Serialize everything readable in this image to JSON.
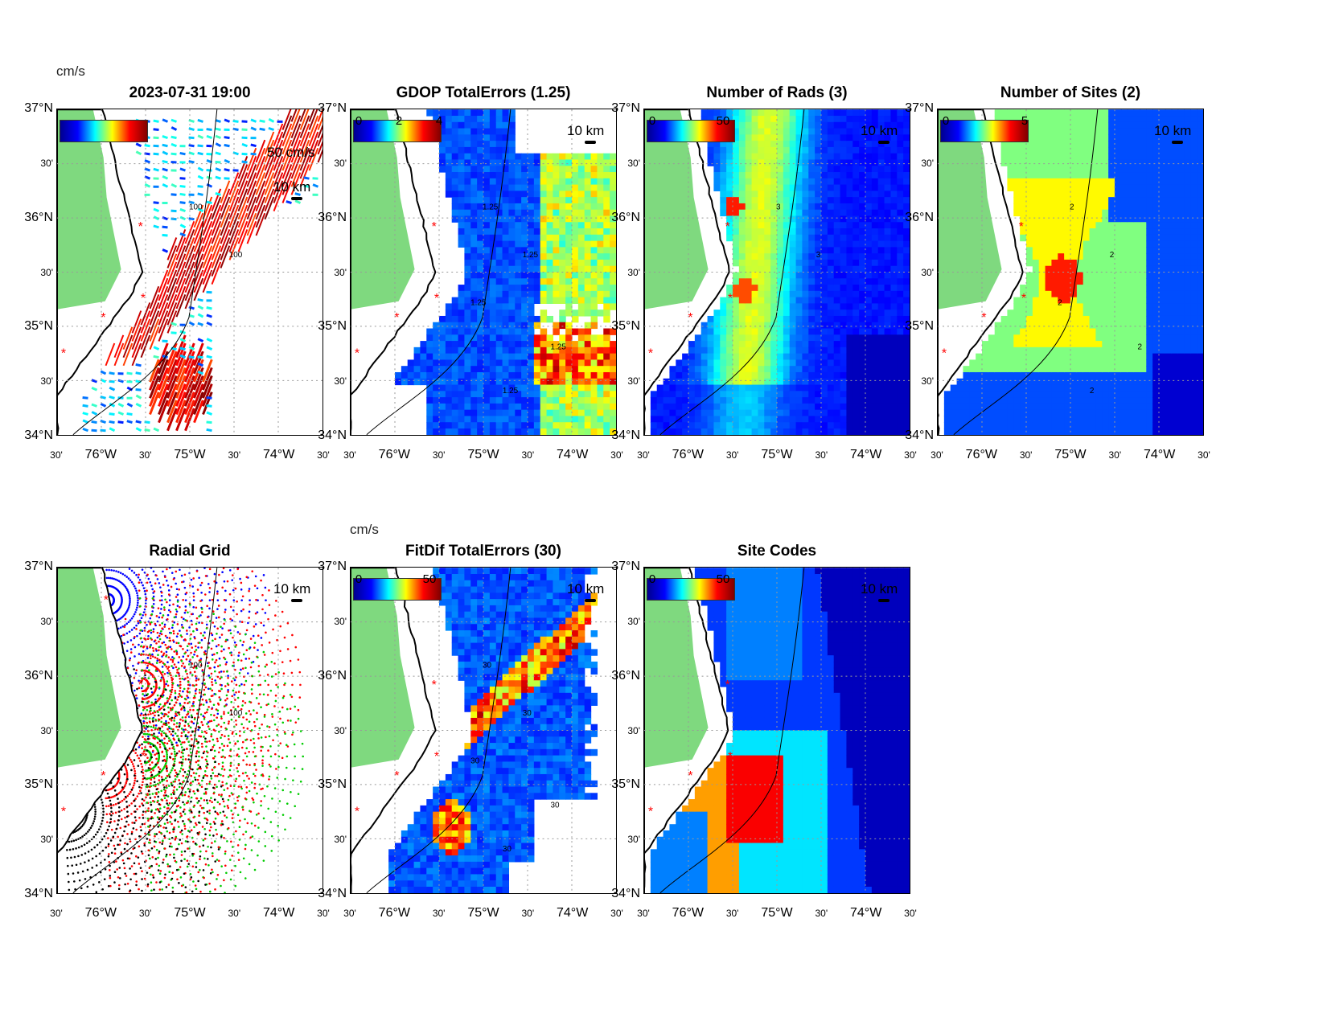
{
  "figure_title": "2023-07-31 19:00",
  "lat_ticks": [
    "37°N",
    "30'",
    "36°N",
    "30'",
    "35°N",
    "30'",
    "34°N"
  ],
  "lon_ticks": [
    "30'",
    "76°W",
    "30'",
    "75°W",
    "30'",
    "74°W",
    "30'"
  ],
  "colors": {
    "land": "#7fd97f",
    "coast": "#000000"
  },
  "chart_data": [
    {
      "id": "currents",
      "type": "quiver",
      "title": "2023-07-31 19:00",
      "colorbar_unit": "cm/s",
      "colorbar_ticks": [],
      "reference_vector": "50 cm/s",
      "scale_bar": "10 km",
      "contours": [
        "100",
        "100"
      ],
      "xlim": [
        -76.5,
        -73.5
      ],
      "ylim": [
        34,
        37
      ]
    },
    {
      "id": "gdop",
      "type": "heatmap",
      "title": "GDOP TotalErrors (1.25)",
      "colorbar_ticks": [
        "0",
        "2",
        "4"
      ],
      "scale_bar": "10 km",
      "contours": [
        "1.25",
        "1.25",
        "1.25",
        "1.25",
        "1.25"
      ],
      "xlim": [
        -76.5,
        -73.5
      ],
      "ylim": [
        34,
        37
      ]
    },
    {
      "id": "nrads",
      "type": "heatmap",
      "title": "Number of Rads (3)",
      "colorbar_ticks": [
        "0",
        "50"
      ],
      "scale_bar": "10 km",
      "contours": [
        "3",
        "3"
      ],
      "xlim": [
        -76.5,
        -73.5
      ],
      "ylim": [
        34,
        37
      ]
    },
    {
      "id": "nsites",
      "type": "heatmap",
      "title": "Number of Sites (2)",
      "colorbar_ticks": [
        "0",
        "5"
      ],
      "scale_bar": "10 km",
      "contours": [
        "2",
        "2",
        "2",
        "2",
        "2"
      ],
      "xlim": [
        -76.5,
        -73.5
      ],
      "ylim": [
        34,
        37
      ]
    },
    {
      "id": "radgrid",
      "type": "scatter",
      "title": "Radial Grid",
      "scale_bar": "10 km",
      "contours": [
        "100",
        "100"
      ],
      "xlim": [
        -76.5,
        -73.5
      ],
      "ylim": [
        34,
        37
      ]
    },
    {
      "id": "fitdif",
      "type": "heatmap",
      "title": "FitDif TotalErrors (30)",
      "colorbar_unit": "cm/s",
      "colorbar_ticks": [
        "0",
        "50"
      ],
      "scale_bar": "10 km",
      "contours": [
        "30",
        "30",
        "30",
        "30",
        "30"
      ],
      "xlim": [
        -76.5,
        -73.5
      ],
      "ylim": [
        34,
        37
      ]
    },
    {
      "id": "sitecodes",
      "type": "heatmap",
      "title": "Site Codes",
      "colorbar_ticks": [
        "0",
        "50"
      ],
      "scale_bar": "10 km",
      "xlim": [
        -76.5,
        -73.5
      ],
      "ylim": [
        34,
        37
      ]
    }
  ]
}
